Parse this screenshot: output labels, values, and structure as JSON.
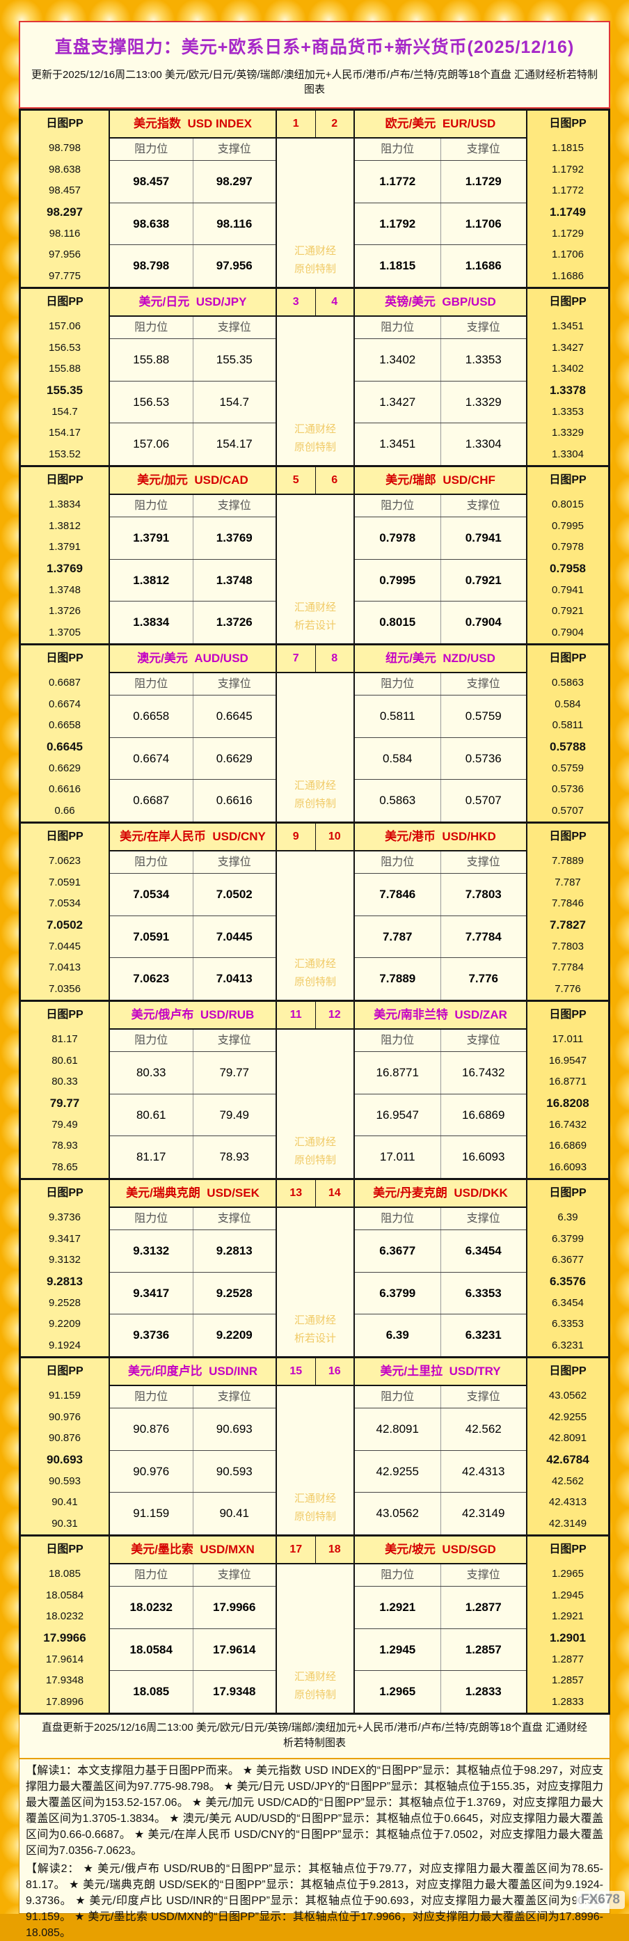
{
  "header": {
    "title": "直盘支撑阻力：美元+欧系日系+商品货币+新兴货币(2025/12/16)",
    "subtitle": "更新于2025/12/16周二13:00 美元/欧元/日元/英镑/瑞郎/澳纽加元+人民币/港币/卢布/兰特/克朗等18个直盘 汇通财经析若特制图表"
  },
  "table": {
    "pp_label": "日图PP",
    "res_label": "阻力位",
    "sup_label": "支撑位",
    "brand": "汇通财经",
    "blocks_meta": [
      {
        "accent": "red",
        "watermark2": "原创特制"
      },
      {
        "accent": "mag",
        "watermark2": "原创特制"
      },
      {
        "accent": "red",
        "watermark2": "析若设计"
      },
      {
        "accent": "mag",
        "watermark2": "原创特制"
      },
      {
        "accent": "red",
        "watermark2": "原创特制"
      },
      {
        "accent": "mag",
        "watermark2": "原创特制"
      },
      {
        "accent": "red",
        "watermark2": "析若设计"
      },
      {
        "accent": "mag",
        "watermark2": "原创特制"
      },
      {
        "accent": "red",
        "watermark2": "原创特制"
      }
    ]
  },
  "footer": {
    "text": "直盘更新于2025/12/16周二13:00 美元/欧元/日元/英镑/瑞郎/澳纽加元+人民币/港币/卢布/兰特/克朗等18个直盘 汇通财经析若特制图表"
  },
  "notes": {
    "note1": "【解读1：本文支撑阻力基于日图PP而来。 ★ 美元指数 USD INDEX的“日图PP”显示：其枢轴点位于98.297，对应支撑阻力最大覆盖区间为97.775-98.798。 ★ 美元/日元 USD/JPY的“日图PP”显示：其枢轴点位于155.35，对应支撑阻力最大覆盖区间为153.52-157.06。 ★ 美元/加元 USD/CAD的“日图PP”显示：其枢轴点位于1.3769，对应支撑阻力最大覆盖区间为1.3705-1.3834。 ★ 澳元/美元 AUD/USD的“日图PP”显示：其枢轴点位于0.6645，对应支撑阻力最大覆盖区间为0.66-0.6687。 ★ 美元/在岸人民币 USD/CNY的“日图PP”显示：其枢轴点位于7.0502，对应支撑阻力最大覆盖区间为7.0356-7.0623。",
    "note2": "【解读2： ★ 美元/俄卢布 USD/RUB的“日图PP”显示：其枢轴点位于79.77，对应支撑阻力最大覆盖区间为78.65-81.17。 ★ 美元/瑞典克朗 USD/SEK的“日图PP”显示：其枢轴点位于9.2813，对应支撑阻力最大覆盖区间为9.1924-9.3736。 ★ 美元/印度卢比 USD/INR的“日图PP”显示：其枢轴点位于90.693，对应支撑阻力最大覆盖区间为90.31-91.159。 ★ 美元/墨比索 USD/MXN的“日图PP”显示：其枢轴点位于17.9966，对应支撑阻力最大覆盖区间为17.8996-18.085。"
  },
  "fx_watermark": "FX678",
  "colors": {
    "red_accent": "#D50000",
    "magenta_accent": "#C400C4",
    "pp_left_bg": "#FFF09C",
    "pp_right_bg": "#FFE87E",
    "title_bg": "#FFF3A8",
    "cream_bg": "#FFFDE8",
    "gold_bg": "#F7AF02",
    "watermark_text": "#F0CA66"
  },
  "chart_data": {
    "type": "table",
    "title": "直盘支撑阻力：美元+欧系日系+商品货币+新兴货币(2025/12/16)",
    "updated": "2025/12/16周二13:00",
    "columns": [
      "阻力位",
      "支撑位"
    ],
    "pp_column": "日图PP",
    "pairs": [
      {
        "num": "1",
        "name_cn": "美元指数",
        "code": "USD INDEX",
        "resistance": [
          "98.457",
          "98.638",
          "98.798"
        ],
        "support": [
          "98.297",
          "98.116",
          "97.956"
        ],
        "pp_levels": [
          "98.798",
          "98.638",
          "98.457",
          "98.297",
          "98.116",
          "97.956",
          "97.775"
        ],
        "pivot": "98.297"
      },
      {
        "num": "2",
        "name_cn": "欧元/美元",
        "code": "EUR/USD",
        "resistance": [
          "1.1772",
          "1.1792",
          "1.1815"
        ],
        "support": [
          "1.1729",
          "1.1706",
          "1.1686"
        ],
        "pp_levels": [
          "1.1815",
          "1.1792",
          "1.1772",
          "1.1749",
          "1.1729",
          "1.1706",
          "1.1686"
        ],
        "pivot": "1.1749"
      },
      {
        "num": "3",
        "name_cn": "美元/日元",
        "code": "USD/JPY",
        "resistance": [
          "155.88",
          "156.53",
          "157.06"
        ],
        "support": [
          "155.35",
          "154.7",
          "154.17"
        ],
        "pp_levels": [
          "157.06",
          "156.53",
          "155.88",
          "155.35",
          "154.7",
          "154.17",
          "153.52"
        ],
        "pivot": "155.35"
      },
      {
        "num": "4",
        "name_cn": "英镑/美元",
        "code": "GBP/USD",
        "resistance": [
          "1.3402",
          "1.3427",
          "1.3451"
        ],
        "support": [
          "1.3353",
          "1.3329",
          "1.3304"
        ],
        "pp_levels": [
          "1.3451",
          "1.3427",
          "1.3402",
          "1.3378",
          "1.3353",
          "1.3329",
          "1.3304"
        ],
        "pivot": "1.3378"
      },
      {
        "num": "5",
        "name_cn": "美元/加元",
        "code": "USD/CAD",
        "resistance": [
          "1.3791",
          "1.3812",
          "1.3834"
        ],
        "support": [
          "1.3769",
          "1.3748",
          "1.3726"
        ],
        "pp_levels": [
          "1.3834",
          "1.3812",
          "1.3791",
          "1.3769",
          "1.3748",
          "1.3726",
          "1.3705"
        ],
        "pivot": "1.3769"
      },
      {
        "num": "6",
        "name_cn": "美元/瑞郎",
        "code": "USD/CHF",
        "resistance": [
          "0.7978",
          "0.7995",
          "0.8015"
        ],
        "support": [
          "0.7941",
          "0.7921",
          "0.7904"
        ],
        "pp_levels": [
          "0.8015",
          "0.7995",
          "0.7978",
          "0.7958",
          "0.7941",
          "0.7921",
          "0.7904"
        ],
        "pivot": "0.7958"
      },
      {
        "num": "7",
        "name_cn": "澳元/美元",
        "code": "AUD/USD",
        "resistance": [
          "0.6658",
          "0.6674",
          "0.6687"
        ],
        "support": [
          "0.6645",
          "0.6629",
          "0.6616"
        ],
        "pp_levels": [
          "0.6687",
          "0.6674",
          "0.6658",
          "0.6645",
          "0.6629",
          "0.6616",
          "0.66"
        ],
        "pivot": "0.6645"
      },
      {
        "num": "8",
        "name_cn": "纽元/美元",
        "code": "NZD/USD",
        "resistance": [
          "0.5811",
          "0.584",
          "0.5863"
        ],
        "support": [
          "0.5759",
          "0.5736",
          "0.5707"
        ],
        "pp_levels": [
          "0.5863",
          "0.584",
          "0.5811",
          "0.5788",
          "0.5759",
          "0.5736",
          "0.5707"
        ],
        "pivot": "0.5788"
      },
      {
        "num": "9",
        "name_cn": "美元/在岸人民币",
        "code": "USD/CNY",
        "resistance": [
          "7.0534",
          "7.0591",
          "7.0623"
        ],
        "support": [
          "7.0502",
          "7.0445",
          "7.0413"
        ],
        "pp_levels": [
          "7.0623",
          "7.0591",
          "7.0534",
          "7.0502",
          "7.0445",
          "7.0413",
          "7.0356"
        ],
        "pivot": "7.0502"
      },
      {
        "num": "10",
        "name_cn": "美元/港币",
        "code": "USD/HKD",
        "resistance": [
          "7.7846",
          "7.787",
          "7.7889"
        ],
        "support": [
          "7.7803",
          "7.7784",
          "7.776"
        ],
        "pp_levels": [
          "7.7889",
          "7.787",
          "7.7846",
          "7.7827",
          "7.7803",
          "7.7784",
          "7.776"
        ],
        "pivot": "7.7827"
      },
      {
        "num": "11",
        "name_cn": "美元/俄卢布",
        "code": "USD/RUB",
        "resistance": [
          "80.33",
          "80.61",
          "81.17"
        ],
        "support": [
          "79.77",
          "79.49",
          "78.93"
        ],
        "pp_levels": [
          "81.17",
          "80.61",
          "80.33",
          "79.77",
          "79.49",
          "78.93",
          "78.65"
        ],
        "pivot": "79.77"
      },
      {
        "num": "12",
        "name_cn": "美元/南非兰特",
        "code": "USD/ZAR",
        "resistance": [
          "16.8771",
          "16.9547",
          "17.011"
        ],
        "support": [
          "16.7432",
          "16.6869",
          "16.6093"
        ],
        "pp_levels": [
          "17.011",
          "16.9547",
          "16.8771",
          "16.8208",
          "16.7432",
          "16.6869",
          "16.6093"
        ],
        "pivot": "16.8208"
      },
      {
        "num": "13",
        "name_cn": "美元/瑞典克朗",
        "code": "USD/SEK",
        "resistance": [
          "9.3132",
          "9.3417",
          "9.3736"
        ],
        "support": [
          "9.2813",
          "9.2528",
          "9.2209"
        ],
        "pp_levels": [
          "9.3736",
          "9.3417",
          "9.3132",
          "9.2813",
          "9.2528",
          "9.2209",
          "9.1924"
        ],
        "pivot": "9.2813"
      },
      {
        "num": "14",
        "name_cn": "美元/丹麦克朗",
        "code": "USD/DKK",
        "resistance": [
          "6.3677",
          "6.3799",
          "6.39"
        ],
        "support": [
          "6.3454",
          "6.3353",
          "6.3231"
        ],
        "pp_levels": [
          "6.39",
          "6.3799",
          "6.3677",
          "6.3576",
          "6.3454",
          "6.3353",
          "6.3231"
        ],
        "pivot": "6.3576"
      },
      {
        "num": "15",
        "name_cn": "美元/印度卢比",
        "code": "USD/INR",
        "resistance": [
          "90.876",
          "90.976",
          "91.159"
        ],
        "support": [
          "90.693",
          "90.593",
          "90.41"
        ],
        "pp_levels": [
          "91.159",
          "90.976",
          "90.876",
          "90.693",
          "90.593",
          "90.41",
          "90.31"
        ],
        "pivot": "90.693"
      },
      {
        "num": "16",
        "name_cn": "美元/土里拉",
        "code": "USD/TRY",
        "resistance": [
          "42.8091",
          "42.9255",
          "43.0562"
        ],
        "support": [
          "42.562",
          "42.4313",
          "42.3149"
        ],
        "pp_levels": [
          "43.0562",
          "42.9255",
          "42.8091",
          "42.6784",
          "42.562",
          "42.4313",
          "42.3149"
        ],
        "pivot": "42.6784"
      },
      {
        "num": "17",
        "name_cn": "美元/墨比索",
        "code": "USD/MXN",
        "resistance": [
          "18.0232",
          "18.0584",
          "18.085"
        ],
        "support": [
          "17.9966",
          "17.9614",
          "17.9348"
        ],
        "pp_levels": [
          "18.085",
          "18.0584",
          "18.0232",
          "17.9966",
          "17.9614",
          "17.9348",
          "17.8996"
        ],
        "pivot": "17.9966"
      },
      {
        "num": "18",
        "name_cn": "美元/坡元",
        "code": "USD/SGD",
        "resistance": [
          "1.2921",
          "1.2945",
          "1.2965"
        ],
        "support": [
          "1.2877",
          "1.2857",
          "1.2833"
        ],
        "pp_levels": [
          "1.2965",
          "1.2945",
          "1.2921",
          "1.2901",
          "1.2877",
          "1.2857",
          "1.2833"
        ],
        "pivot": "1.2901"
      }
    ]
  }
}
